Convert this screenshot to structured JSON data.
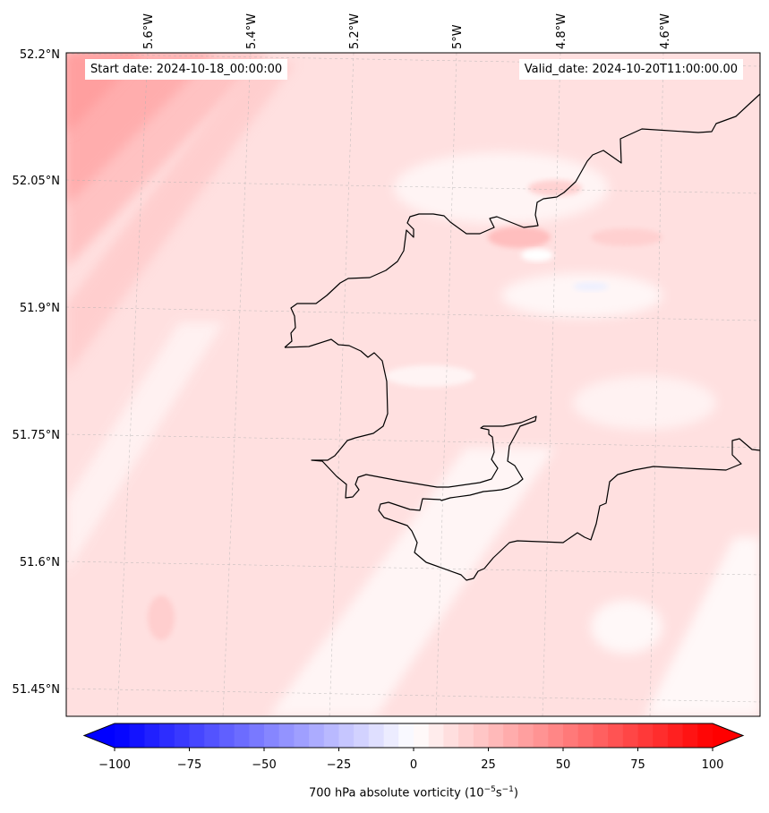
{
  "map": {
    "start_label": "Start date: 2024-10-18_00:00:00",
    "valid_label": "Valid_date: 2024-10-20T11:00:00.00",
    "lon_ticks": [
      "5.6°W",
      "5.4°W",
      "5.2°W",
      "5°W",
      "4.8°W",
      "4.6°W"
    ],
    "lat_ticks": [
      "52.2°N",
      "52.05°N",
      "51.9°N",
      "51.75°N",
      "51.6°N",
      "51.45°N"
    ],
    "colors": {
      "low": "#0000ff",
      "mid": "#ffffff",
      "high": "#ff0000",
      "coastline": "#000000"
    }
  },
  "colorbar": {
    "ticks": [
      "−100",
      "−75",
      "−50",
      "−25",
      "0",
      "25",
      "50",
      "75",
      "100"
    ],
    "min": -100,
    "max": 100,
    "levels": 41,
    "extend": "both",
    "title_prefix": "700 hPa absolute vorticity (10",
    "title_exp1": "−5",
    "title_mid": "s",
    "title_exp2": "−1",
    "title_suffix": ")"
  }
}
